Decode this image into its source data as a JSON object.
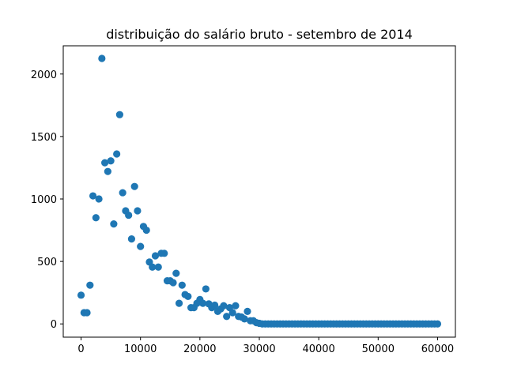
{
  "chart_data": {
    "type": "scatter",
    "title": "distribuição do salário bruto - setembro de 2014",
    "xlabel": "",
    "ylabel": "",
    "xlim": [
      -3000,
      63000
    ],
    "ylim": [
      -106,
      2226
    ],
    "x_ticks": [
      0,
      10000,
      20000,
      30000,
      40000,
      50000,
      60000
    ],
    "x_tick_labels": [
      "0",
      "10000",
      "20000",
      "30000",
      "40000",
      "50000",
      "60000"
    ],
    "y_ticks": [
      0,
      500,
      1000,
      1500,
      2000
    ],
    "y_tick_labels": [
      "0",
      "500",
      "1000",
      "1500",
      "2000"
    ],
    "grid": false,
    "marker_color": "#1f77b4",
    "points": [
      {
        "x": 0,
        "y": 230
      },
      {
        "x": 500,
        "y": 90
      },
      {
        "x": 1000,
        "y": 90
      },
      {
        "x": 1500,
        "y": 310
      },
      {
        "x": 2000,
        "y": 1025
      },
      {
        "x": 2500,
        "y": 850
      },
      {
        "x": 3000,
        "y": 1000
      },
      {
        "x": 3500,
        "y": 2125
      },
      {
        "x": 4000,
        "y": 1290
      },
      {
        "x": 4500,
        "y": 1220
      },
      {
        "x": 5000,
        "y": 1305
      },
      {
        "x": 5500,
        "y": 800
      },
      {
        "x": 6000,
        "y": 1360
      },
      {
        "x": 6500,
        "y": 1675
      },
      {
        "x": 7000,
        "y": 1050
      },
      {
        "x": 7500,
        "y": 905
      },
      {
        "x": 8000,
        "y": 870
      },
      {
        "x": 8500,
        "y": 680
      },
      {
        "x": 9000,
        "y": 1100
      },
      {
        "x": 9500,
        "y": 905
      },
      {
        "x": 10000,
        "y": 620
      },
      {
        "x": 10500,
        "y": 780
      },
      {
        "x": 11000,
        "y": 750
      },
      {
        "x": 11500,
        "y": 495
      },
      {
        "x": 12000,
        "y": 455
      },
      {
        "x": 12500,
        "y": 545
      },
      {
        "x": 13000,
        "y": 455
      },
      {
        "x": 13500,
        "y": 565
      },
      {
        "x": 14000,
        "y": 565
      },
      {
        "x": 14500,
        "y": 345
      },
      {
        "x": 15000,
        "y": 345
      },
      {
        "x": 15500,
        "y": 330
      },
      {
        "x": 16000,
        "y": 405
      },
      {
        "x": 16500,
        "y": 165
      },
      {
        "x": 17000,
        "y": 310
      },
      {
        "x": 17500,
        "y": 235
      },
      {
        "x": 18000,
        "y": 220
      },
      {
        "x": 18500,
        "y": 130
      },
      {
        "x": 19000,
        "y": 130
      },
      {
        "x": 19500,
        "y": 165
      },
      {
        "x": 20000,
        "y": 195
      },
      {
        "x": 20500,
        "y": 165
      },
      {
        "x": 21000,
        "y": 280
      },
      {
        "x": 21500,
        "y": 160
      },
      {
        "x": 22000,
        "y": 130
      },
      {
        "x": 22500,
        "y": 150
      },
      {
        "x": 23000,
        "y": 100
      },
      {
        "x": 23500,
        "y": 120
      },
      {
        "x": 24000,
        "y": 145
      },
      {
        "x": 24500,
        "y": 60
      },
      {
        "x": 25000,
        "y": 130
      },
      {
        "x": 25500,
        "y": 90
      },
      {
        "x": 26000,
        "y": 145
      },
      {
        "x": 26500,
        "y": 60
      },
      {
        "x": 27000,
        "y": 55
      },
      {
        "x": 27500,
        "y": 40
      },
      {
        "x": 28000,
        "y": 100
      },
      {
        "x": 28500,
        "y": 25
      },
      {
        "x": 29000,
        "y": 25
      },
      {
        "x": 29500,
        "y": 10
      },
      {
        "x": 30000,
        "y": 5
      },
      {
        "x": 30500,
        "y": 0
      },
      {
        "x": 31000,
        "y": 0
      },
      {
        "x": 31500,
        "y": 0
      },
      {
        "x": 32000,
        "y": 0
      },
      {
        "x": 32500,
        "y": 0
      },
      {
        "x": 33000,
        "y": 0
      },
      {
        "x": 33500,
        "y": 0
      },
      {
        "x": 34000,
        "y": 0
      },
      {
        "x": 34500,
        "y": 0
      },
      {
        "x": 35000,
        "y": 0
      },
      {
        "x": 35500,
        "y": 0
      },
      {
        "x": 36000,
        "y": 0
      },
      {
        "x": 36500,
        "y": 0
      },
      {
        "x": 37000,
        "y": 0
      },
      {
        "x": 37500,
        "y": 0
      },
      {
        "x": 38000,
        "y": 0
      },
      {
        "x": 38500,
        "y": 0
      },
      {
        "x": 39000,
        "y": 0
      },
      {
        "x": 39500,
        "y": 0
      },
      {
        "x": 40000,
        "y": 0
      },
      {
        "x": 40500,
        "y": 0
      },
      {
        "x": 41000,
        "y": 0
      },
      {
        "x": 41500,
        "y": 0
      },
      {
        "x": 42000,
        "y": 0
      },
      {
        "x": 42500,
        "y": 0
      },
      {
        "x": 43000,
        "y": 0
      },
      {
        "x": 43500,
        "y": 0
      },
      {
        "x": 44000,
        "y": 0
      },
      {
        "x": 44500,
        "y": 0
      },
      {
        "x": 45000,
        "y": 0
      },
      {
        "x": 45500,
        "y": 0
      },
      {
        "x": 46000,
        "y": 0
      },
      {
        "x": 46500,
        "y": 0
      },
      {
        "x": 47000,
        "y": 0
      },
      {
        "x": 47500,
        "y": 0
      },
      {
        "x": 48000,
        "y": 0
      },
      {
        "x": 48500,
        "y": 0
      },
      {
        "x": 49000,
        "y": 0
      },
      {
        "x": 49500,
        "y": 0
      },
      {
        "x": 50000,
        "y": 0
      },
      {
        "x": 50500,
        "y": 0
      },
      {
        "x": 51000,
        "y": 0
      },
      {
        "x": 51500,
        "y": 0
      },
      {
        "x": 52000,
        "y": 0
      },
      {
        "x": 52500,
        "y": 0
      },
      {
        "x": 53000,
        "y": 0
      },
      {
        "x": 53500,
        "y": 0
      },
      {
        "x": 54000,
        "y": 0
      },
      {
        "x": 54500,
        "y": 0
      },
      {
        "x": 55000,
        "y": 0
      },
      {
        "x": 55500,
        "y": 0
      },
      {
        "x": 56000,
        "y": 0
      },
      {
        "x": 56500,
        "y": 0
      },
      {
        "x": 57000,
        "y": 0
      },
      {
        "x": 57500,
        "y": 0
      },
      {
        "x": 58000,
        "y": 0
      },
      {
        "x": 58500,
        "y": 0
      },
      {
        "x": 59000,
        "y": 0
      },
      {
        "x": 59500,
        "y": 0
      },
      {
        "x": 60000,
        "y": 0
      }
    ]
  }
}
